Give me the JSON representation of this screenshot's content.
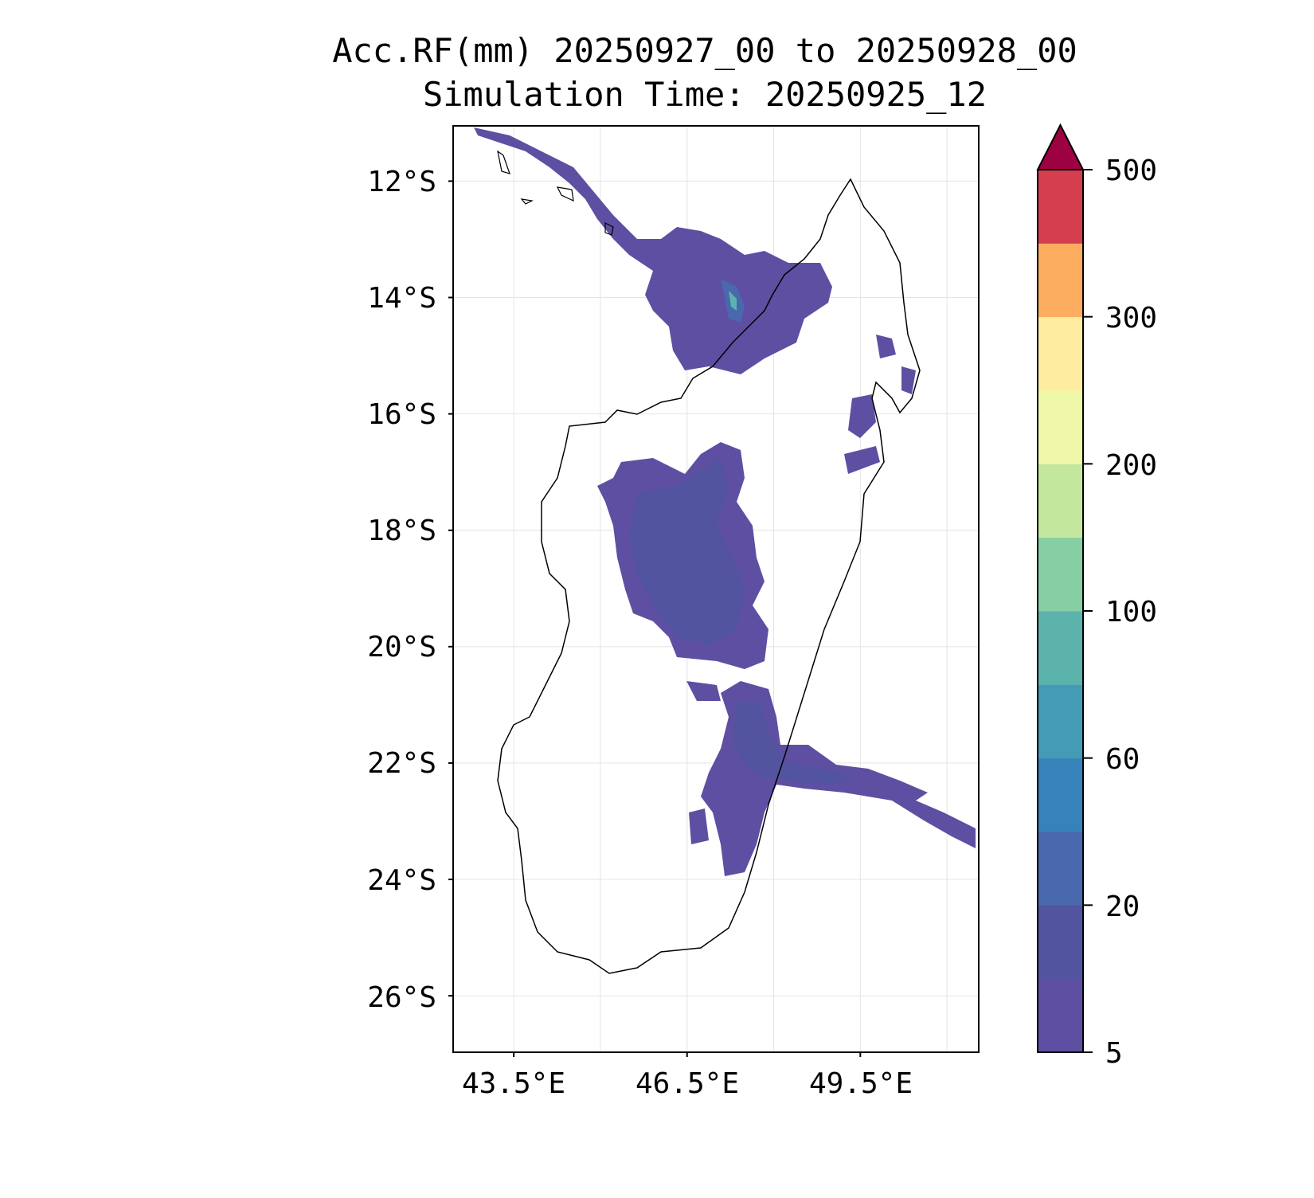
{
  "title": {
    "line1": "Acc.RF(mm) 20250927_00 to 20250928_00",
    "line2": "Simulation Time: 20250925_12"
  },
  "chart_data": {
    "type": "heatmap",
    "title": "Acc.RF(mm) 20250927_00 to 20250928_00 / Simulation Time: 20250925_12",
    "region": "Madagascar",
    "xlim": [
      42.45,
      51.55
    ],
    "ylim": [
      -26.97,
      -11.05
    ],
    "xticks": [
      {
        "value": 43.5,
        "label": "43.5°E"
      },
      {
        "value": 46.5,
        "label": "46.5°E"
      },
      {
        "value": 49.5,
        "label": "49.5°E"
      }
    ],
    "yticks": [
      {
        "value": -12,
        "label": "12°S"
      },
      {
        "value": -14,
        "label": "14°S"
      },
      {
        "value": -16,
        "label": "16°S"
      },
      {
        "value": -18,
        "label": "18°S"
      },
      {
        "value": -20,
        "label": "20°S"
      },
      {
        "value": -22,
        "label": "22°S"
      },
      {
        "value": -24,
        "label": "24°S"
      },
      {
        "value": -26,
        "label": "26°S"
      }
    ],
    "grid": true,
    "colorbar": {
      "levels": [
        5,
        10,
        20,
        40,
        60,
        80,
        100,
        150,
        200,
        250,
        300,
        400,
        500
      ],
      "tick_labels": [
        "5",
        "20",
        "60",
        "100",
        "200",
        "300",
        "500"
      ],
      "colors": [
        "#5e4fa2",
        "#5254a0",
        "#4a68ad",
        "#3682ba",
        "#439bb5",
        "#5cb3ac",
        "#86cfa5",
        "#c4e79e",
        "#eef8a8",
        "#feeda1",
        "#fdad60",
        "#d53e4f"
      ],
      "extend_color": "#9e0142",
      "extend": "max"
    }
  }
}
